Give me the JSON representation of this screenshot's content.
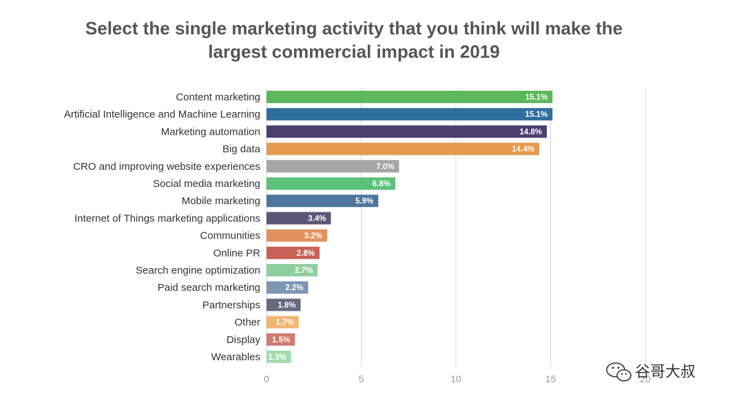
{
  "chart_data": {
    "type": "bar",
    "orientation": "horizontal",
    "title_lines": [
      "Select the single marketing activity that you think will make the",
      "largest commercial impact in 2019"
    ],
    "categories": [
      "Content marketing",
      "Artificial Intelligence and Machine Learning",
      "Marketing automation",
      "Big data",
      "CRO and improving website experiences",
      "Social media marketing",
      "Mobile marketing",
      "Internet of Things marketing applications",
      "Communities",
      "Online PR",
      "Search engine optimization",
      "Paid search marketing",
      "Partnerships",
      "Other",
      "Display",
      "Wearables"
    ],
    "values": [
      15.1,
      15.1,
      14.8,
      14.4,
      7.0,
      6.8,
      5.9,
      3.4,
      3.2,
      2.8,
      2.7,
      2.2,
      1.8,
      1.7,
      1.5,
      1.3
    ],
    "value_labels": [
      "15.1%",
      "15.1%",
      "14.8%",
      "14.4%",
      "7.0%",
      "6.8%",
      "5.9%",
      "3.4%",
      "3.2%",
      "2.8%",
      "2.7%",
      "2.2%",
      "1.8%",
      "1.7%",
      "1.5%",
      "1.3%"
    ],
    "colors": [
      "#5cb85c",
      "#2f6f9f",
      "#4b3f6e",
      "#e39a4f",
      "#a5a5a5",
      "#5cc27a",
      "#50759c",
      "#5b5675",
      "#e0925e",
      "#c96257",
      "#8fcf9f",
      "#7d97b3",
      "#666a80",
      "#f0b675",
      "#d17a70",
      "#a3dbae"
    ],
    "xlim": [
      0,
      20
    ],
    "xticks": [
      0,
      5,
      10,
      15,
      20
    ],
    "grid": true,
    "xlabel": "",
    "ylabel": ""
  },
  "watermark": {
    "text": "谷哥大叔",
    "icon": "wechat-logo-icon"
  }
}
